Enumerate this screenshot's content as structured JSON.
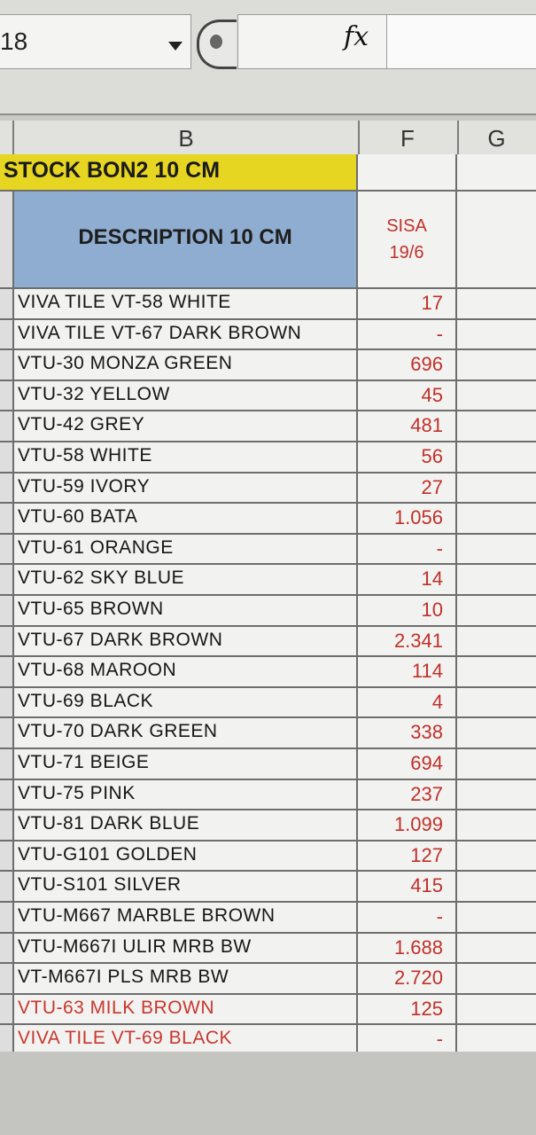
{
  "formula_bar": {
    "name_box": "18",
    "fx_label": "fx",
    "formula": ""
  },
  "columns": [
    {
      "id": "col-B",
      "label": "B"
    },
    {
      "id": "col-F",
      "label": "F"
    },
    {
      "id": "col-G",
      "label": "G"
    }
  ],
  "sheet": {
    "title": "STOCK BON2 10 CM",
    "header_description": "DESCRIPTION 10 CM",
    "header_sisa": "SISA",
    "header_date": "19/6"
  },
  "rows": [
    {
      "description": "VIVA TILE VT-58 WHITE",
      "sisa": "17",
      "red": false
    },
    {
      "description": "VIVA TILE VT-67 DARK BROWN",
      "sisa": "-",
      "red": false
    },
    {
      "description": "VTU-30 MONZA GREEN",
      "sisa": "696",
      "red": false
    },
    {
      "description": "VTU-32 YELLOW",
      "sisa": "45",
      "red": false
    },
    {
      "description": "VTU-42 GREY",
      "sisa": "481",
      "red": false
    },
    {
      "description": "VTU-58 WHITE",
      "sisa": "56",
      "red": false
    },
    {
      "description": "VTU-59 IVORY",
      "sisa": "27",
      "red": false
    },
    {
      "description": "VTU-60 BATA",
      "sisa": "1.056",
      "red": false
    },
    {
      "description": "VTU-61 ORANGE",
      "sisa": "-",
      "red": false
    },
    {
      "description": "VTU-62 SKY BLUE",
      "sisa": "14",
      "red": false
    },
    {
      "description": "VTU-65 BROWN",
      "sisa": "10",
      "red": false
    },
    {
      "description": "VTU-67 DARK BROWN",
      "sisa": "2.341",
      "red": false
    },
    {
      "description": "VTU-68 MAROON",
      "sisa": "114",
      "red": false
    },
    {
      "description": "VTU-69 BLACK",
      "sisa": "4",
      "red": false
    },
    {
      "description": "VTU-70 DARK GREEN",
      "sisa": "338",
      "red": false
    },
    {
      "description": "VTU-71 BEIGE",
      "sisa": "694",
      "red": false
    },
    {
      "description": "VTU-75 PINK",
      "sisa": "237",
      "red": false
    },
    {
      "description": "VTU-81 DARK BLUE",
      "sisa": "1.099",
      "red": false
    },
    {
      "description": "VTU-G101 GOLDEN",
      "sisa": "127",
      "red": false
    },
    {
      "description": "VTU-S101 SILVER",
      "sisa": "415",
      "red": false
    },
    {
      "description": "VTU-M667 MARBLE BROWN",
      "sisa": "-",
      "red": false
    },
    {
      "description": "VTU-M667I ULIR MRB BW",
      "sisa": "1.688",
      "red": false
    },
    {
      "description": "VT-M667I PLS MRB BW",
      "sisa": "2.720",
      "red": false
    },
    {
      "description": "VTU-63 MILK BROWN",
      "sisa": "125",
      "red": true
    },
    {
      "description": "VIVA TILE VT-69 BLACK",
      "sisa": "-",
      "red": true
    }
  ],
  "colors": {
    "title_fill": "#e6d521",
    "header_fill": "#8fadd0",
    "value_text": "#c0302a"
  }
}
